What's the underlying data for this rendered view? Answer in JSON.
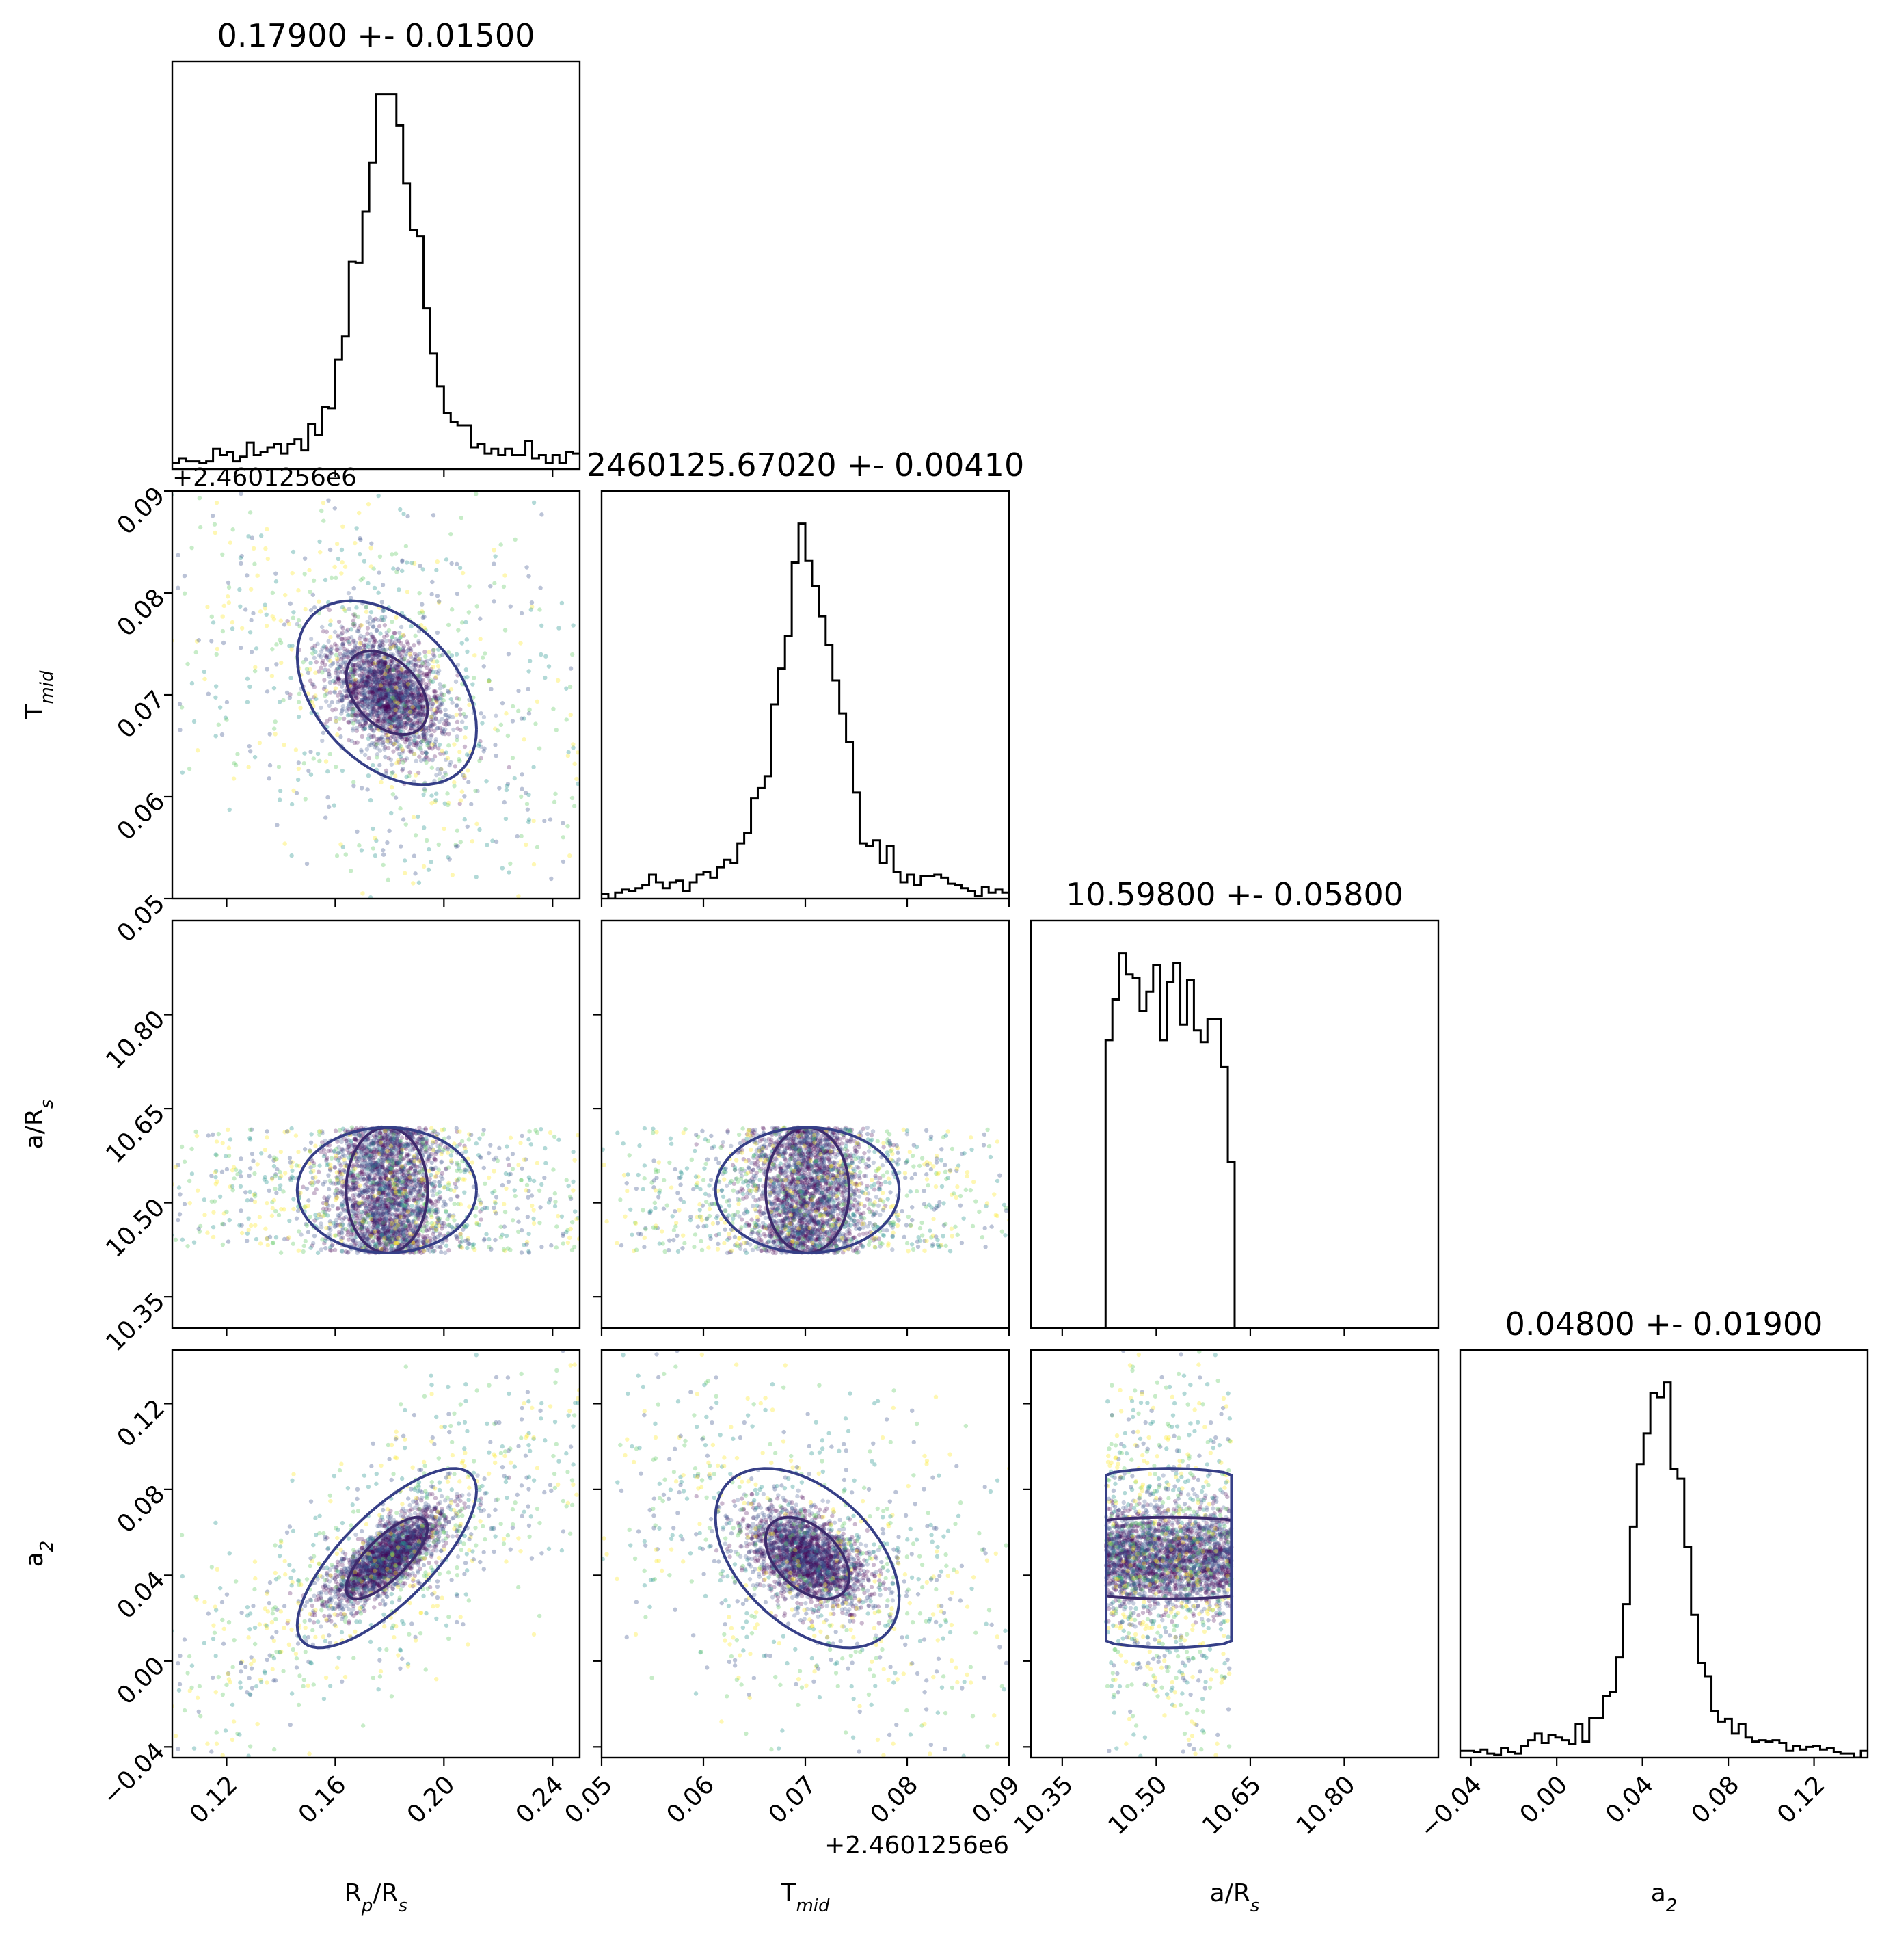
{
  "chart_data": {
    "type": "corner",
    "parameters": [
      {
        "key": "rp",
        "label_main": "R",
        "label_sub1": "p",
        "label_mid": "/R",
        "label_sub2": "s",
        "title": "0.17900 +- 0.01500",
        "range": [
          0.1,
          0.25
        ],
        "ticks": [
          0.12,
          0.16,
          0.2,
          0.24
        ],
        "tick_labels": [
          "0.12",
          "0.16",
          "0.20",
          "0.24"
        ],
        "median": 0.179,
        "sigma": 0.015
      },
      {
        "key": "tmid",
        "label_main": "T",
        "label_sub1": "mid",
        "title": "2460125.67020 +- 0.00410",
        "offset": "+2.4601256e6",
        "range": [
          0.05,
          0.09
        ],
        "ticks": [
          0.05,
          0.06,
          0.07,
          0.08,
          0.09
        ],
        "tick_labels": [
          "0.05",
          "0.06",
          "0.07",
          "0.08",
          "0.09"
        ],
        "median": 0.0702,
        "sigma": 0.0041
      },
      {
        "key": "ars",
        "label_main": "a/R",
        "label_sub1": "s",
        "title": "10.59800 +- 0.05800",
        "range": [
          10.3,
          10.95
        ],
        "ticks": [
          10.35,
          10.5,
          10.65,
          10.8
        ],
        "tick_labels": [
          "10.35",
          "10.50",
          "10.65",
          "10.80"
        ],
        "uniform": [
          10.42,
          10.62
        ]
      },
      {
        "key": "a2",
        "label_main": "a",
        "label_sub1": "2",
        "title": "0.04800 +- 0.01900",
        "range": [
          -0.045,
          0.145
        ],
        "ticks": [
          -0.04,
          0.0,
          0.04,
          0.08,
          0.12
        ],
        "tick_labels": [
          "−0.04",
          "0.00",
          "0.04",
          "0.08",
          "0.12"
        ],
        "median": 0.048,
        "sigma": 0.019
      }
    ],
    "correlations": {
      "rp_tmid": -0.4,
      "rp_a2": 0.75,
      "tmid_a2": -0.45
    },
    "sample_colormap": "viridis",
    "contour_colors": [
      "#3d2b6d",
      "#363f87",
      "#fde725"
    ],
    "grid": false
  }
}
